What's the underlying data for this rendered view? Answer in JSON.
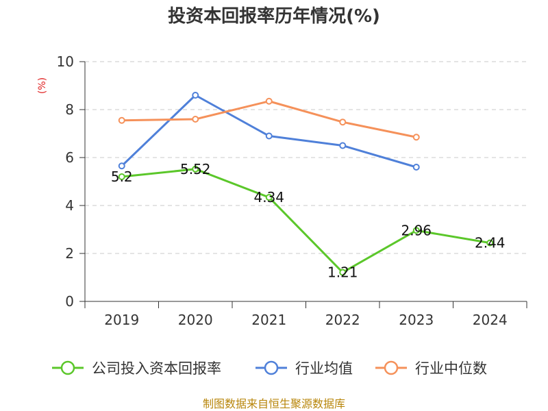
{
  "chart_data": {
    "type": "line",
    "title": "投资本回报率历年情况(%)",
    "ylabel": "(%)",
    "categories": [
      "2019",
      "2020",
      "2021",
      "2022",
      "2023",
      "2024"
    ],
    "ylim": [
      0,
      10
    ],
    "yticks": [
      0,
      2,
      4,
      6,
      8,
      10
    ],
    "grid": true,
    "legend_position": "bottom",
    "series": [
      {
        "name": "公司投入资本回报率",
        "color": "#5bc72a",
        "show_labels": true,
        "values": [
          5.2,
          5.52,
          4.34,
          1.21,
          2.96,
          2.44
        ],
        "labels": [
          "5.2",
          "5.52",
          "4.34",
          "1.21",
          "2.96",
          "2.44"
        ]
      },
      {
        "name": "行业均值",
        "color": "#4f80d9",
        "show_labels": false,
        "values": [
          5.65,
          8.6,
          6.9,
          6.5,
          5.6,
          null
        ]
      },
      {
        "name": "行业中位数",
        "color": "#f5915a",
        "show_labels": false,
        "values": [
          7.55,
          7.6,
          8.35,
          7.48,
          6.85,
          null
        ]
      }
    ]
  },
  "source": "制图数据来自恒生聚源数据库"
}
